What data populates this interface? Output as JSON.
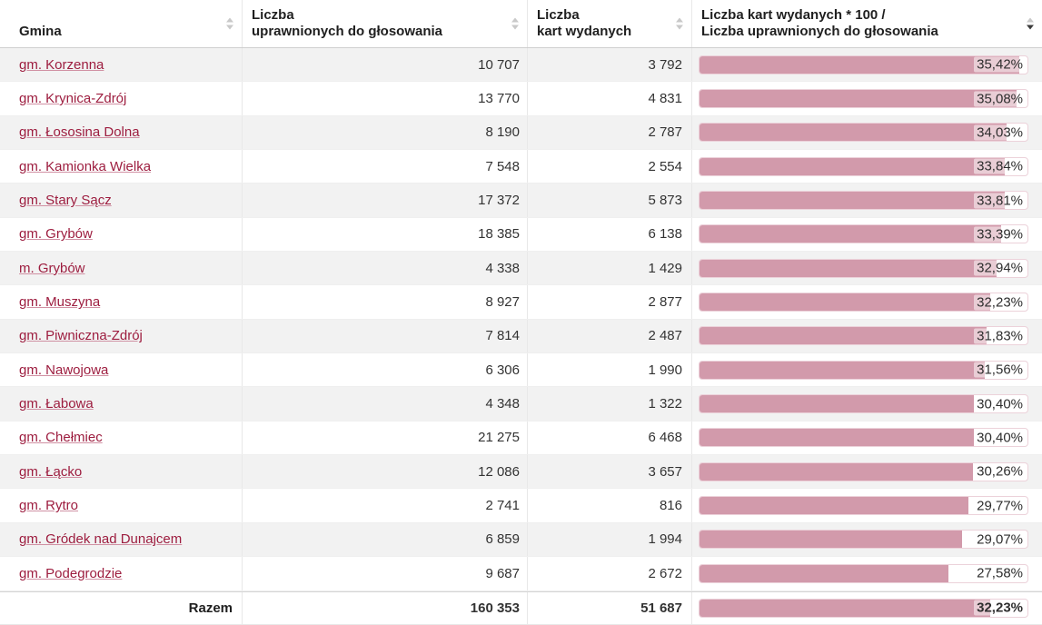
{
  "table": {
    "columns": [
      {
        "label": "Gmina",
        "sort": "none"
      },
      {
        "label": "Liczba\nuprawnionych do głosowania",
        "sort": "none"
      },
      {
        "label": "Liczba\nkart wydanych",
        "sort": "none"
      },
      {
        "label": "Liczba kart wydanych * 100 /\nLiczba uprawnionych do głosowania",
        "sort": "desc"
      }
    ],
    "bar_scale_max": 36.33,
    "rows": [
      {
        "gmina": "gm. Korzenna",
        "eligible": "10 707",
        "issued": "3 792",
        "pct_label": "35,42%",
        "pct": 35.42
      },
      {
        "gmina": "gm. Krynica-Zdrój",
        "eligible": "13 770",
        "issued": "4 831",
        "pct_label": "35,08%",
        "pct": 35.08
      },
      {
        "gmina": "gm. Łososina Dolna",
        "eligible": "8 190",
        "issued": "2 787",
        "pct_label": "34,03%",
        "pct": 34.03
      },
      {
        "gmina": "gm. Kamionka Wielka",
        "eligible": "7 548",
        "issued": "2 554",
        "pct_label": "33,84%",
        "pct": 33.84
      },
      {
        "gmina": "gm. Stary Sącz",
        "eligible": "17 372",
        "issued": "5 873",
        "pct_label": "33,81%",
        "pct": 33.81
      },
      {
        "gmina": "gm. Grybów",
        "eligible": "18 385",
        "issued": "6 138",
        "pct_label": "33,39%",
        "pct": 33.39
      },
      {
        "gmina": "m. Grybów",
        "eligible": "4 338",
        "issued": "1 429",
        "pct_label": "32,94%",
        "pct": 32.94
      },
      {
        "gmina": "gm. Muszyna",
        "eligible": "8 927",
        "issued": "2 877",
        "pct_label": "32,23%",
        "pct": 32.23
      },
      {
        "gmina": "gm. Piwniczna-Zdrój",
        "eligible": "7 814",
        "issued": "2 487",
        "pct_label": "31,83%",
        "pct": 31.83
      },
      {
        "gmina": "gm. Nawojowa",
        "eligible": "6 306",
        "issued": "1 990",
        "pct_label": "31,56%",
        "pct": 31.56
      },
      {
        "gmina": "gm. Łabowa",
        "eligible": "4 348",
        "issued": "1 322",
        "pct_label": "30,40%",
        "pct": 30.4
      },
      {
        "gmina": "gm. Chełmiec",
        "eligible": "21 275",
        "issued": "6 468",
        "pct_label": "30,40%",
        "pct": 30.4
      },
      {
        "gmina": "gm. Łącko",
        "eligible": "12 086",
        "issued": "3 657",
        "pct_label": "30,26%",
        "pct": 30.26
      },
      {
        "gmina": "gm. Rytro",
        "eligible": "2 741",
        "issued": "816",
        "pct_label": "29,77%",
        "pct": 29.77
      },
      {
        "gmina": "gm. Gródek nad Dunajcem",
        "eligible": "6 859",
        "issued": "1 994",
        "pct_label": "29,07%",
        "pct": 29.07
      },
      {
        "gmina": "gm. Podegrodzie",
        "eligible": "9 687",
        "issued": "2 672",
        "pct_label": "27,58%",
        "pct": 27.58
      }
    ],
    "footer": {
      "label": "Razem",
      "eligible": "160 353",
      "issued": "51 687",
      "pct_label": "32,23%",
      "pct": 32.23
    }
  },
  "colors": {
    "bar_fill": "#d29aab",
    "bar_track_border": "#ecd2da",
    "link": "#9d1d3f",
    "row_alt_background": "#f2f2f2",
    "sort_active": "#3c3c3c",
    "sort_inactive": "#c9c9c9"
  }
}
